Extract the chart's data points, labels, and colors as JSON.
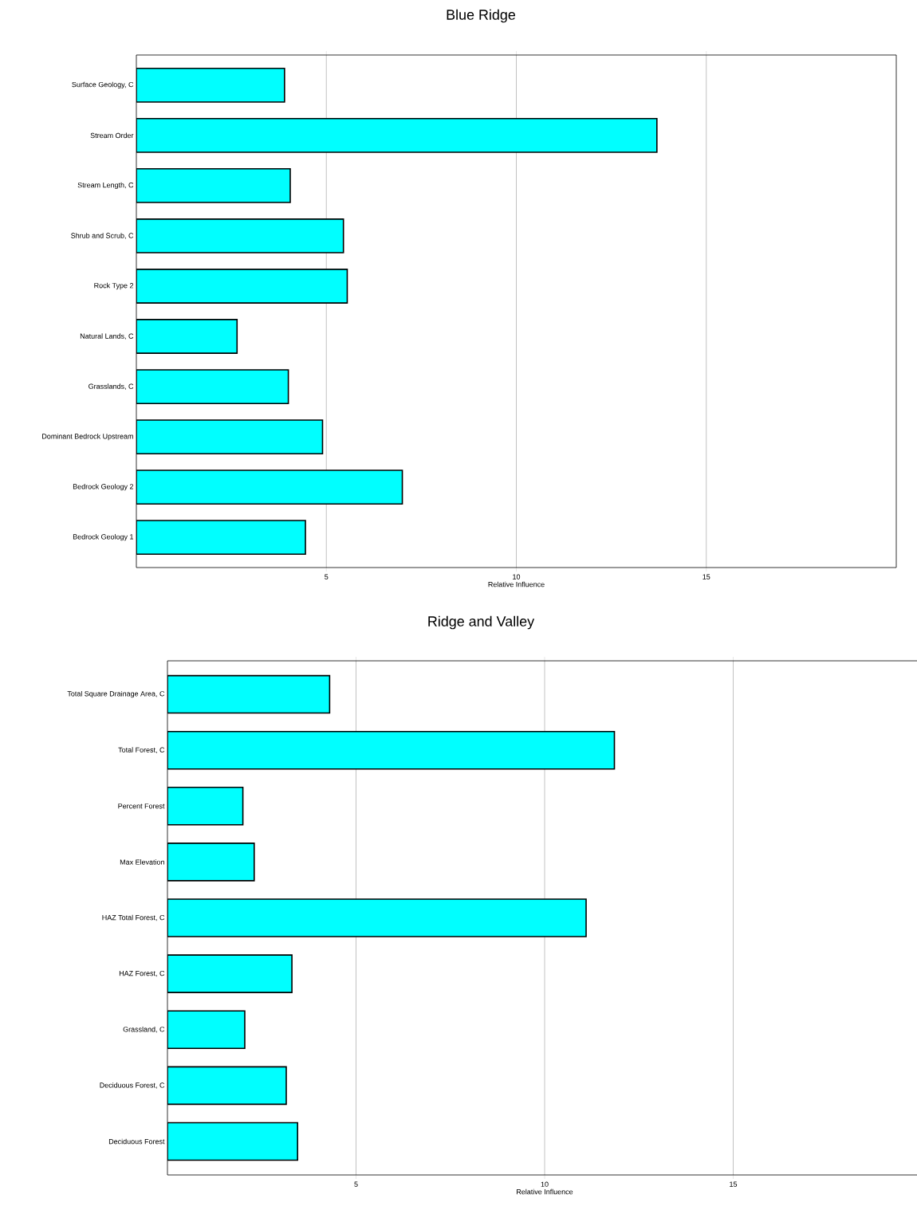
{
  "chart_data": [
    {
      "type": "bar",
      "orientation": "horizontal",
      "title": "Blue Ridge",
      "xlabel": "Relative Influence",
      "categories": [
        "Surface Geology, C",
        "Stream Order",
        "Stream Length, C",
        "Shrub and Scrub, C",
        "Rock Type 2",
        "Natural Lands, C",
        "Grasslands, C",
        "Dominant Bedrock Upstream",
        "Bedrock Geology 2",
        "Bedrock Geology 1"
      ],
      "values": [
        3.9,
        13.7,
        4.05,
        5.45,
        5.55,
        2.65,
        4.0,
        4.9,
        7.0,
        4.45
      ],
      "color": "#00ffff",
      "xlim": [
        0,
        20
      ],
      "xticks": [
        5,
        10,
        15
      ],
      "grid": "x"
    },
    {
      "type": "bar",
      "orientation": "horizontal",
      "title": "Ridge and Valley",
      "xlabel": "Relative Influence",
      "categories": [
        "Total Square Drainage Area, C",
        "Total Forest, C",
        "Percent Forest",
        "Max Elevation",
        "HAZ Total Forest, C",
        "HAZ Forest, C",
        "Grassland, C",
        "Deciduous Forest, C",
        "Deciduous Forest"
      ],
      "values": [
        4.3,
        11.85,
        2.0,
        2.3,
        11.1,
        3.3,
        2.05,
        3.15,
        3.45
      ],
      "color": "#00ffff",
      "xlim": [
        0,
        20
      ],
      "xticks": [
        5,
        10,
        15
      ],
      "grid": "x"
    }
  ]
}
